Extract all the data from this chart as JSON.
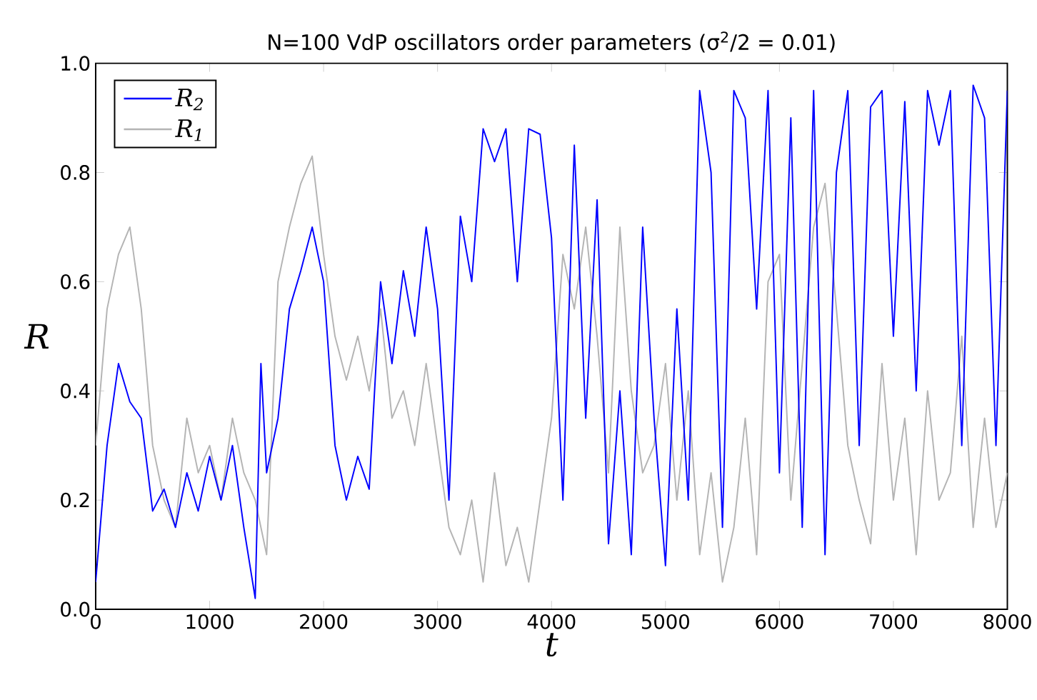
{
  "chart_data": {
    "type": "line",
    "title": "N=100 VdP oscillators order parameters (σ$^{2}$/2 = 0.01)",
    "xlabel": "t",
    "ylabel": "R",
    "xlim": [
      0,
      8000
    ],
    "ylim": [
      0,
      1
    ],
    "xticks": [
      0,
      1000,
      2000,
      3000,
      4000,
      5000,
      6000,
      7000,
      8000
    ],
    "yticks": [
      {
        "value": 0,
        "label": "0.0"
      },
      0.2,
      0.4,
      0.6,
      0.8,
      {
        "value": 1,
        "label": "1.0"
      }
    ],
    "legend": "top left",
    "series": [
      {
        "name": "R$_{2}$",
        "color": "#0000ff",
        "x": [
          0,
          100,
          200,
          300,
          400,
          500,
          600,
          700,
          800,
          900,
          1000,
          1100,
          1200,
          1300,
          1400,
          1450,
          1500,
          1600,
          1700,
          1800,
          1900,
          2000,
          2100,
          2200,
          2300,
          2400,
          2500,
          2600,
          2700,
          2800,
          2900,
          3000,
          3100,
          3200,
          3300,
          3400,
          3500,
          3600,
          3700,
          3800,
          3900,
          4000,
          4100,
          4200,
          4300,
          4400,
          4500,
          4600,
          4700,
          4800,
          4900,
          5000,
          5100,
          5200,
          5300,
          5400,
          5500,
          5600,
          5700,
          5800,
          5900,
          6000,
          6100,
          6200,
          6300,
          6400,
          6500,
          6600,
          6700,
          6800,
          6900,
          7000,
          7100,
          7200,
          7300,
          7400,
          7500,
          7600,
          7700,
          7800,
          7900,
          8000
        ],
        "values": [
          0.05,
          0.3,
          0.45,
          0.38,
          0.35,
          0.18,
          0.22,
          0.15,
          0.25,
          0.18,
          0.28,
          0.2,
          0.3,
          0.15,
          0.02,
          0.45,
          0.25,
          0.35,
          0.55,
          0.62,
          0.7,
          0.6,
          0.3,
          0.2,
          0.28,
          0.22,
          0.6,
          0.45,
          0.62,
          0.5,
          0.7,
          0.55,
          0.2,
          0.72,
          0.6,
          0.88,
          0.82,
          0.88,
          0.6,
          0.88,
          0.87,
          0.68,
          0.2,
          0.85,
          0.35,
          0.75,
          0.12,
          0.4,
          0.1,
          0.7,
          0.35,
          0.08,
          0.55,
          0.2,
          0.95,
          0.8,
          0.15,
          0.95,
          0.9,
          0.55,
          0.95,
          0.25,
          0.9,
          0.15,
          0.95,
          0.1,
          0.8,
          0.95,
          0.3,
          0.92,
          0.95,
          0.5,
          0.93,
          0.4,
          0.95,
          0.85,
          0.95,
          0.3,
          0.96,
          0.9,
          0.3,
          0.95
        ]
      },
      {
        "name": "R$_{1}$",
        "color": "#b4b4b4",
        "x": [
          0,
          100,
          200,
          300,
          400,
          500,
          600,
          700,
          800,
          900,
          1000,
          1100,
          1200,
          1300,
          1400,
          1500,
          1600,
          1700,
          1800,
          1900,
          2000,
          2100,
          2200,
          2300,
          2400,
          2500,
          2600,
          2700,
          2800,
          2900,
          3000,
          3100,
          3200,
          3300,
          3400,
          3500,
          3600,
          3700,
          3800,
          3900,
          4000,
          4100,
          4200,
          4300,
          4400,
          4500,
          4600,
          4700,
          4800,
          4900,
          5000,
          5100,
          5200,
          5300,
          5400,
          5500,
          5600,
          5700,
          5800,
          5900,
          6000,
          6100,
          6200,
          6300,
          6400,
          6500,
          6600,
          6700,
          6800,
          6900,
          7000,
          7100,
          7200,
          7300,
          7400,
          7500,
          7600,
          7700,
          7800,
          7900,
          8000
        ],
        "values": [
          0.3,
          0.55,
          0.65,
          0.7,
          0.55,
          0.3,
          0.2,
          0.15,
          0.35,
          0.25,
          0.3,
          0.2,
          0.35,
          0.25,
          0.2,
          0.1,
          0.6,
          0.7,
          0.78,
          0.83,
          0.65,
          0.5,
          0.42,
          0.5,
          0.4,
          0.55,
          0.35,
          0.4,
          0.3,
          0.45,
          0.3,
          0.15,
          0.1,
          0.2,
          0.05,
          0.25,
          0.08,
          0.15,
          0.05,
          0.2,
          0.35,
          0.65,
          0.55,
          0.7,
          0.5,
          0.25,
          0.7,
          0.4,
          0.25,
          0.3,
          0.45,
          0.2,
          0.4,
          0.1,
          0.25,
          0.05,
          0.15,
          0.35,
          0.1,
          0.6,
          0.65,
          0.2,
          0.45,
          0.7,
          0.78,
          0.55,
          0.3,
          0.2,
          0.12,
          0.45,
          0.2,
          0.35,
          0.1,
          0.4,
          0.2,
          0.25,
          0.5,
          0.15,
          0.35,
          0.15,
          0.25
        ]
      }
    ]
  }
}
